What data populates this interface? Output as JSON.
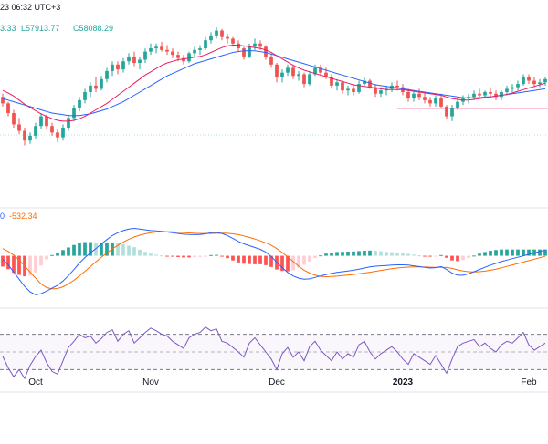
{
  "header": {
    "timestamp": "23 06:32 UTC+3",
    "ohlc_fragment": "3.33",
    "low": "L57913.77",
    "close": "C58088.29",
    "macd_fragment": "0",
    "macd_value": "-532.34"
  },
  "colors": {
    "up": "#26a69a",
    "down": "#ef5350",
    "ma_fast": "#e91e63",
    "ma_slow": "#2962ff",
    "macd_line": "#2962ff",
    "signal_line": "#ff6d00",
    "hist_up_strong": "#26a69a",
    "hist_up_weak": "#b2dfdb",
    "hist_down_strong": "#ff5252",
    "hist_down_weak": "#ffcdd2",
    "rsi": "#7e57c2",
    "support": "#e91e63",
    "grid": "#f0f3fa",
    "pane_border": "#e0e3eb"
  },
  "chart_data": {
    "type": "candlestick",
    "x_ticks": [
      {
        "label": "Oct",
        "index": 6,
        "bold": false
      },
      {
        "label": "Nov",
        "index": 27,
        "bold": false
      },
      {
        "label": "Dec",
        "index": 50,
        "bold": false
      },
      {
        "label": "2023",
        "index": 73,
        "bold": true
      },
      {
        "label": "Feb",
        "index": 96,
        "bold": false
      }
    ],
    "price_range": [
      51500,
      60800
    ],
    "support_level": 55800,
    "support_start_index": 72,
    "candles": [
      [
        56500,
        56700,
        55900,
        56100
      ],
      [
        56100,
        56200,
        55300,
        55500
      ],
      [
        55500,
        55700,
        54600,
        54800
      ],
      [
        54800,
        55200,
        54200,
        54400
      ],
      [
        54400,
        54600,
        53500,
        53800
      ],
      [
        53800,
        54300,
        53600,
        54100
      ],
      [
        54100,
        54900,
        53900,
        54700
      ],
      [
        54700,
        55500,
        54500,
        55300
      ],
      [
        55300,
        55400,
        54500,
        54700
      ],
      [
        54700,
        54900,
        54100,
        54300
      ],
      [
        54300,
        54500,
        53700,
        54000
      ],
      [
        54000,
        54800,
        53800,
        54600
      ],
      [
        54600,
        55400,
        54400,
        55200
      ],
      [
        55200,
        56000,
        55000,
        55800
      ],
      [
        55800,
        56500,
        55600,
        56300
      ],
      [
        56300,
        57000,
        56100,
        56800
      ],
      [
        56800,
        57400,
        56500,
        57200
      ],
      [
        57200,
        57700,
        56800,
        57000
      ],
      [
        57000,
        57800,
        56900,
        57600
      ],
      [
        57600,
        58300,
        57400,
        58100
      ],
      [
        58100,
        58700,
        57800,
        58500
      ],
      [
        58500,
        58700,
        57900,
        58200
      ],
      [
        58200,
        58900,
        58000,
        58700
      ],
      [
        58700,
        59200,
        58500,
        59000
      ],
      [
        59000,
        59300,
        58400,
        58600
      ],
      [
        58600,
        59000,
        58200,
        58800
      ],
      [
        58800,
        59500,
        58600,
        59300
      ],
      [
        59300,
        59800,
        59100,
        59500
      ],
      [
        59500,
        59800,
        59200,
        59600
      ],
      [
        59600,
        59900,
        59300,
        59400
      ],
      [
        59400,
        59700,
        59100,
        59300
      ],
      [
        59300,
        59500,
        58900,
        59100
      ],
      [
        59100,
        59300,
        58700,
        58900
      ],
      [
        58900,
        59100,
        58500,
        58700
      ],
      [
        58700,
        59300,
        58600,
        59200
      ],
      [
        59200,
        59600,
        59000,
        59400
      ],
      [
        59400,
        59700,
        59100,
        59500
      ],
      [
        59500,
        60200,
        59400,
        60000
      ],
      [
        60000,
        60500,
        59800,
        60300
      ],
      [
        60300,
        60800,
        60100,
        60600
      ],
      [
        60600,
        60700,
        60000,
        60200
      ],
      [
        60200,
        60400,
        59800,
        60100
      ],
      [
        60100,
        60200,
        59600,
        59800
      ],
      [
        59800,
        60000,
        59300,
        59500
      ],
      [
        59500,
        59600,
        58800,
        59000
      ],
      [
        59000,
        59800,
        58900,
        59600
      ],
      [
        59600,
        60100,
        59400,
        59800
      ],
      [
        59800,
        60000,
        59400,
        59600
      ],
      [
        59600,
        59700,
        58800,
        59000
      ],
      [
        59000,
        59200,
        58300,
        58500
      ],
      [
        58500,
        58600,
        57400,
        57700
      ],
      [
        57700,
        58200,
        57400,
        58000
      ],
      [
        58000,
        58500,
        57800,
        58300
      ],
      [
        58300,
        58500,
        57600,
        57800
      ],
      [
        57800,
        58100,
        57500,
        57900
      ],
      [
        57900,
        58000,
        57100,
        57300
      ],
      [
        57300,
        58100,
        57200,
        57900
      ],
      [
        57900,
        58500,
        57800,
        58300
      ],
      [
        58300,
        58500,
        57800,
        58000
      ],
      [
        58000,
        58300,
        57600,
        57700
      ],
      [
        57700,
        57900,
        57000,
        57200
      ],
      [
        57200,
        57600,
        56900,
        57400
      ],
      [
        57400,
        57500,
        56700,
        56900
      ],
      [
        56900,
        57200,
        56600,
        57000
      ],
      [
        57000,
        57300,
        56600,
        56800
      ],
      [
        56800,
        57500,
        56700,
        57300
      ],
      [
        57300,
        57700,
        57200,
        57500
      ],
      [
        57500,
        57600,
        57000,
        57100
      ],
      [
        57100,
        57300,
        56500,
        56700
      ],
      [
        56700,
        57100,
        56500,
        56900
      ],
      [
        56900,
        57200,
        56600,
        57000
      ],
      [
        57000,
        57400,
        56800,
        57200
      ],
      [
        57200,
        57500,
        56900,
        57100
      ],
      [
        57100,
        57300,
        56600,
        56800
      ],
      [
        56800,
        57000,
        56200,
        56400
      ],
      [
        56400,
        56900,
        56200,
        56700
      ],
      [
        56700,
        57000,
        56300,
        56500
      ],
      [
        56500,
        56800,
        56100,
        56300
      ],
      [
        56300,
        56500,
        55900,
        56100
      ],
      [
        56100,
        56600,
        55900,
        56400
      ],
      [
        56400,
        56700,
        55800,
        55900
      ],
      [
        55900,
        56000,
        55100,
        55300
      ],
      [
        55300,
        56000,
        55000,
        55800
      ],
      [
        55800,
        56400,
        55700,
        56200
      ],
      [
        56200,
        56600,
        56000,
        56400
      ],
      [
        56400,
        56700,
        56100,
        56500
      ],
      [
        56500,
        56900,
        56300,
        56700
      ],
      [
        56700,
        57000,
        56400,
        56600
      ],
      [
        56600,
        56900,
        56400,
        56800
      ],
      [
        56800,
        57100,
        56500,
        56700
      ],
      [
        56700,
        56900,
        56300,
        56500
      ],
      [
        56500,
        56900,
        56300,
        56800
      ],
      [
        56800,
        57200,
        56600,
        57000
      ],
      [
        57000,
        57300,
        56800,
        57100
      ],
      [
        57100,
        57500,
        56900,
        57300
      ],
      [
        57300,
        57900,
        57200,
        57700
      ],
      [
        57700,
        57900,
        57300,
        57500
      ],
      [
        57500,
        57700,
        57100,
        57300
      ],
      [
        57300,
        57600,
        57100,
        57400
      ],
      [
        57400,
        57700,
        57200,
        57600
      ]
    ],
    "ma_fast": [
      56900,
      56750,
      56550,
      56300,
      56050,
      55850,
      55650,
      55450,
      55300,
      55150,
      55050,
      55000,
      55000,
      55050,
      55150,
      55300,
      55500,
      55700,
      55900,
      56100,
      56350,
      56600,
      56850,
      57100,
      57350,
      57600,
      57850,
      58050,
      58250,
      58450,
      58600,
      58700,
      58800,
      58850,
      58900,
      58950,
      59000,
      59100,
      59250,
      59400,
      59550,
      59650,
      59700,
      59700,
      59650,
      59600,
      59550,
      59500,
      59400,
      59250,
      59050,
      58850,
      58650,
      58450,
      58300,
      58150,
      58050,
      57950,
      57850,
      57750,
      57650,
      57550,
      57450,
      57350,
      57250,
      57200,
      57150,
      57100,
      57050,
      57000,
      56950,
      56950,
      56950,
      56950,
      56900,
      56850,
      56800,
      56750,
      56700,
      56650,
      56600,
      56500,
      56400,
      56350,
      56300,
      56300,
      56350,
      56400,
      56450,
      56500,
      56550,
      56600,
      56650,
      56750,
      56850,
      56950,
      57050,
      57150,
      57250,
      57350
    ],
    "ma_slow": [
      56400,
      56300,
      56200,
      56100,
      56000,
      55900,
      55800,
      55700,
      55600,
      55500,
      55450,
      55400,
      55350,
      55350,
      55350,
      55400,
      55450,
      55550,
      55650,
      55750,
      55900,
      56050,
      56200,
      56400,
      56600,
      56800,
      57000,
      57200,
      57400,
      57600,
      57800,
      57950,
      58100,
      58250,
      58400,
      58550,
      58650,
      58750,
      58850,
      58950,
      59050,
      59150,
      59250,
      59300,
      59350,
      59350,
      59350,
      59300,
      59250,
      59150,
      59050,
      58950,
      58850,
      58750,
      58650,
      58550,
      58450,
      58350,
      58250,
      58150,
      58050,
      57950,
      57850,
      57750,
      57650,
      57550,
      57450,
      57350,
      57250,
      57200,
      57150,
      57100,
      57050,
      57000,
      56950,
      56900,
      56850,
      56800,
      56750,
      56700,
      56650,
      56600,
      56550,
      56500,
      56450,
      56450,
      56450,
      56450,
      56500,
      56500,
      56550,
      56600,
      56650,
      56700,
      56750,
      56800,
      56850,
      56900,
      56950,
      57000
    ],
    "macd_range": [
      -1200,
      900
    ],
    "macd": [
      -100,
      -250,
      -450,
      -650,
      -850,
      -1000,
      -1080,
      -1050,
      -980,
      -900,
      -820,
      -700,
      -550,
      -380,
      -200,
      -50,
      80,
      200,
      330,
      450,
      560,
      640,
      700,
      740,
      760,
      740,
      720,
      700,
      690,
      680,
      660,
      640,
      620,
      600,
      590,
      585,
      590,
      610,
      640,
      650,
      620,
      560,
      480,
      400,
      330,
      280,
      230,
      180,
      100,
      -20,
      -180,
      -330,
      -460,
      -560,
      -620,
      -650,
      -640,
      -600,
      -560,
      -520,
      -490,
      -460,
      -440,
      -420,
      -400,
      -370,
      -340,
      -310,
      -290,
      -280,
      -270,
      -260,
      -250,
      -250,
      -260,
      -280,
      -300,
      -320,
      -340,
      -330,
      -300,
      -380,
      -480,
      -540,
      -540,
      -500,
      -440,
      -380,
      -320,
      -260,
      -210,
      -160,
      -120,
      -80,
      -40,
      0,
      40,
      80,
      120,
      160
    ],
    "signal": [
      200,
      120,
      20,
      -120,
      -280,
      -450,
      -620,
      -780,
      -880,
      -920,
      -910,
      -860,
      -780,
      -680,
      -560,
      -430,
      -300,
      -170,
      -40,
      80,
      190,
      290,
      380,
      460,
      520,
      570,
      610,
      640,
      660,
      670,
      670,
      665,
      655,
      645,
      635,
      625,
      620,
      618,
      620,
      625,
      630,
      625,
      610,
      585,
      550,
      510,
      465,
      415,
      360,
      290,
      200,
      90,
      -30,
      -160,
      -290,
      -400,
      -480,
      -540,
      -570,
      -580,
      -575,
      -565,
      -550,
      -535,
      -520,
      -500,
      -480,
      -455,
      -430,
      -405,
      -380,
      -360,
      -340,
      -325,
      -315,
      -310,
      -310,
      -312,
      -316,
      -320,
      -320,
      -325,
      -350,
      -390,
      -420,
      -440,
      -445,
      -440,
      -425,
      -400,
      -370,
      -335,
      -295,
      -255,
      -215,
      -175,
      -135,
      -95,
      -55,
      -15
    ],
    "rsi_range": [
      15,
      85
    ],
    "rsi": [
      45,
      32,
      22,
      30,
      20,
      35,
      45,
      52,
      38,
      28,
      25,
      40,
      55,
      62,
      70,
      66,
      68,
      60,
      65,
      72,
      75,
      62,
      70,
      74,
      60,
      66,
      72,
      77,
      74,
      70,
      68,
      62,
      58,
      54,
      66,
      70,
      72,
      78,
      74,
      76,
      62,
      60,
      55,
      50,
      44,
      60,
      66,
      58,
      50,
      42,
      30,
      48,
      55,
      44,
      50,
      40,
      56,
      62,
      52,
      46,
      40,
      50,
      42,
      48,
      44,
      58,
      62,
      50,
      42,
      48,
      52,
      56,
      50,
      42,
      36,
      48,
      44,
      40,
      36,
      46,
      36,
      26,
      42,
      56,
      60,
      62,
      64,
      56,
      60,
      54,
      50,
      58,
      62,
      60,
      66,
      72,
      58,
      52,
      56,
      60
    ]
  }
}
